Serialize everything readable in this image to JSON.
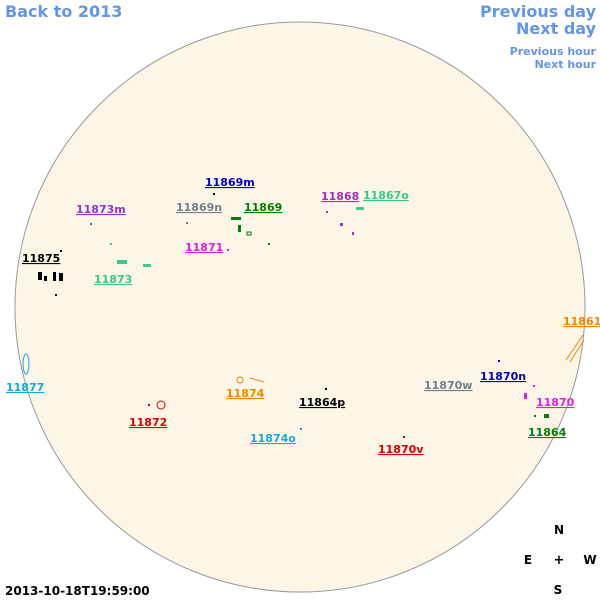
{
  "nav": {
    "back": "Back to 2013",
    "previous_day": "Previous day",
    "next_day": "Next day",
    "previous_hour": "Previous hour",
    "next_hour": "Next hour"
  },
  "regions": [
    {
      "label": "11869m",
      "color": "#0000cc"
    },
    {
      "label": "11873m",
      "color": "#9933cc"
    },
    {
      "label": "11869n",
      "color": "#708090"
    },
    {
      "label": "11869",
      "color": "#008000"
    },
    {
      "label": "11868",
      "color": "#9933cc"
    },
    {
      "label": "11867o",
      "color": "#33cc88"
    },
    {
      "label": "11871",
      "color": "#e020e0"
    },
    {
      "label": "11875",
      "color": "#000000"
    },
    {
      "label": "11873",
      "color": "#33cc88"
    },
    {
      "label": "11861",
      "color": "#ee8800"
    },
    {
      "label": "11877",
      "color": "#11aadd"
    },
    {
      "label": "11874",
      "color": "#ee8800"
    },
    {
      "label": "11870w",
      "color": "#708090"
    },
    {
      "label": "11870n",
      "color": "#0000cc"
    },
    {
      "label": "11864p",
      "color": "#000000"
    },
    {
      "label": "11870",
      "color": "#e020e0"
    },
    {
      "label": "11872",
      "color": "#dd0000"
    },
    {
      "label": "11874o",
      "color": "#11aadd"
    },
    {
      "label": "11864",
      "color": "#008000"
    },
    {
      "label": "11870v",
      "color": "#dd0000"
    }
  ],
  "compass": {
    "north": "N",
    "east": "E",
    "center": "+",
    "west": "W",
    "south": "S"
  },
  "timestamp": "2013-10-18T19:59:00"
}
